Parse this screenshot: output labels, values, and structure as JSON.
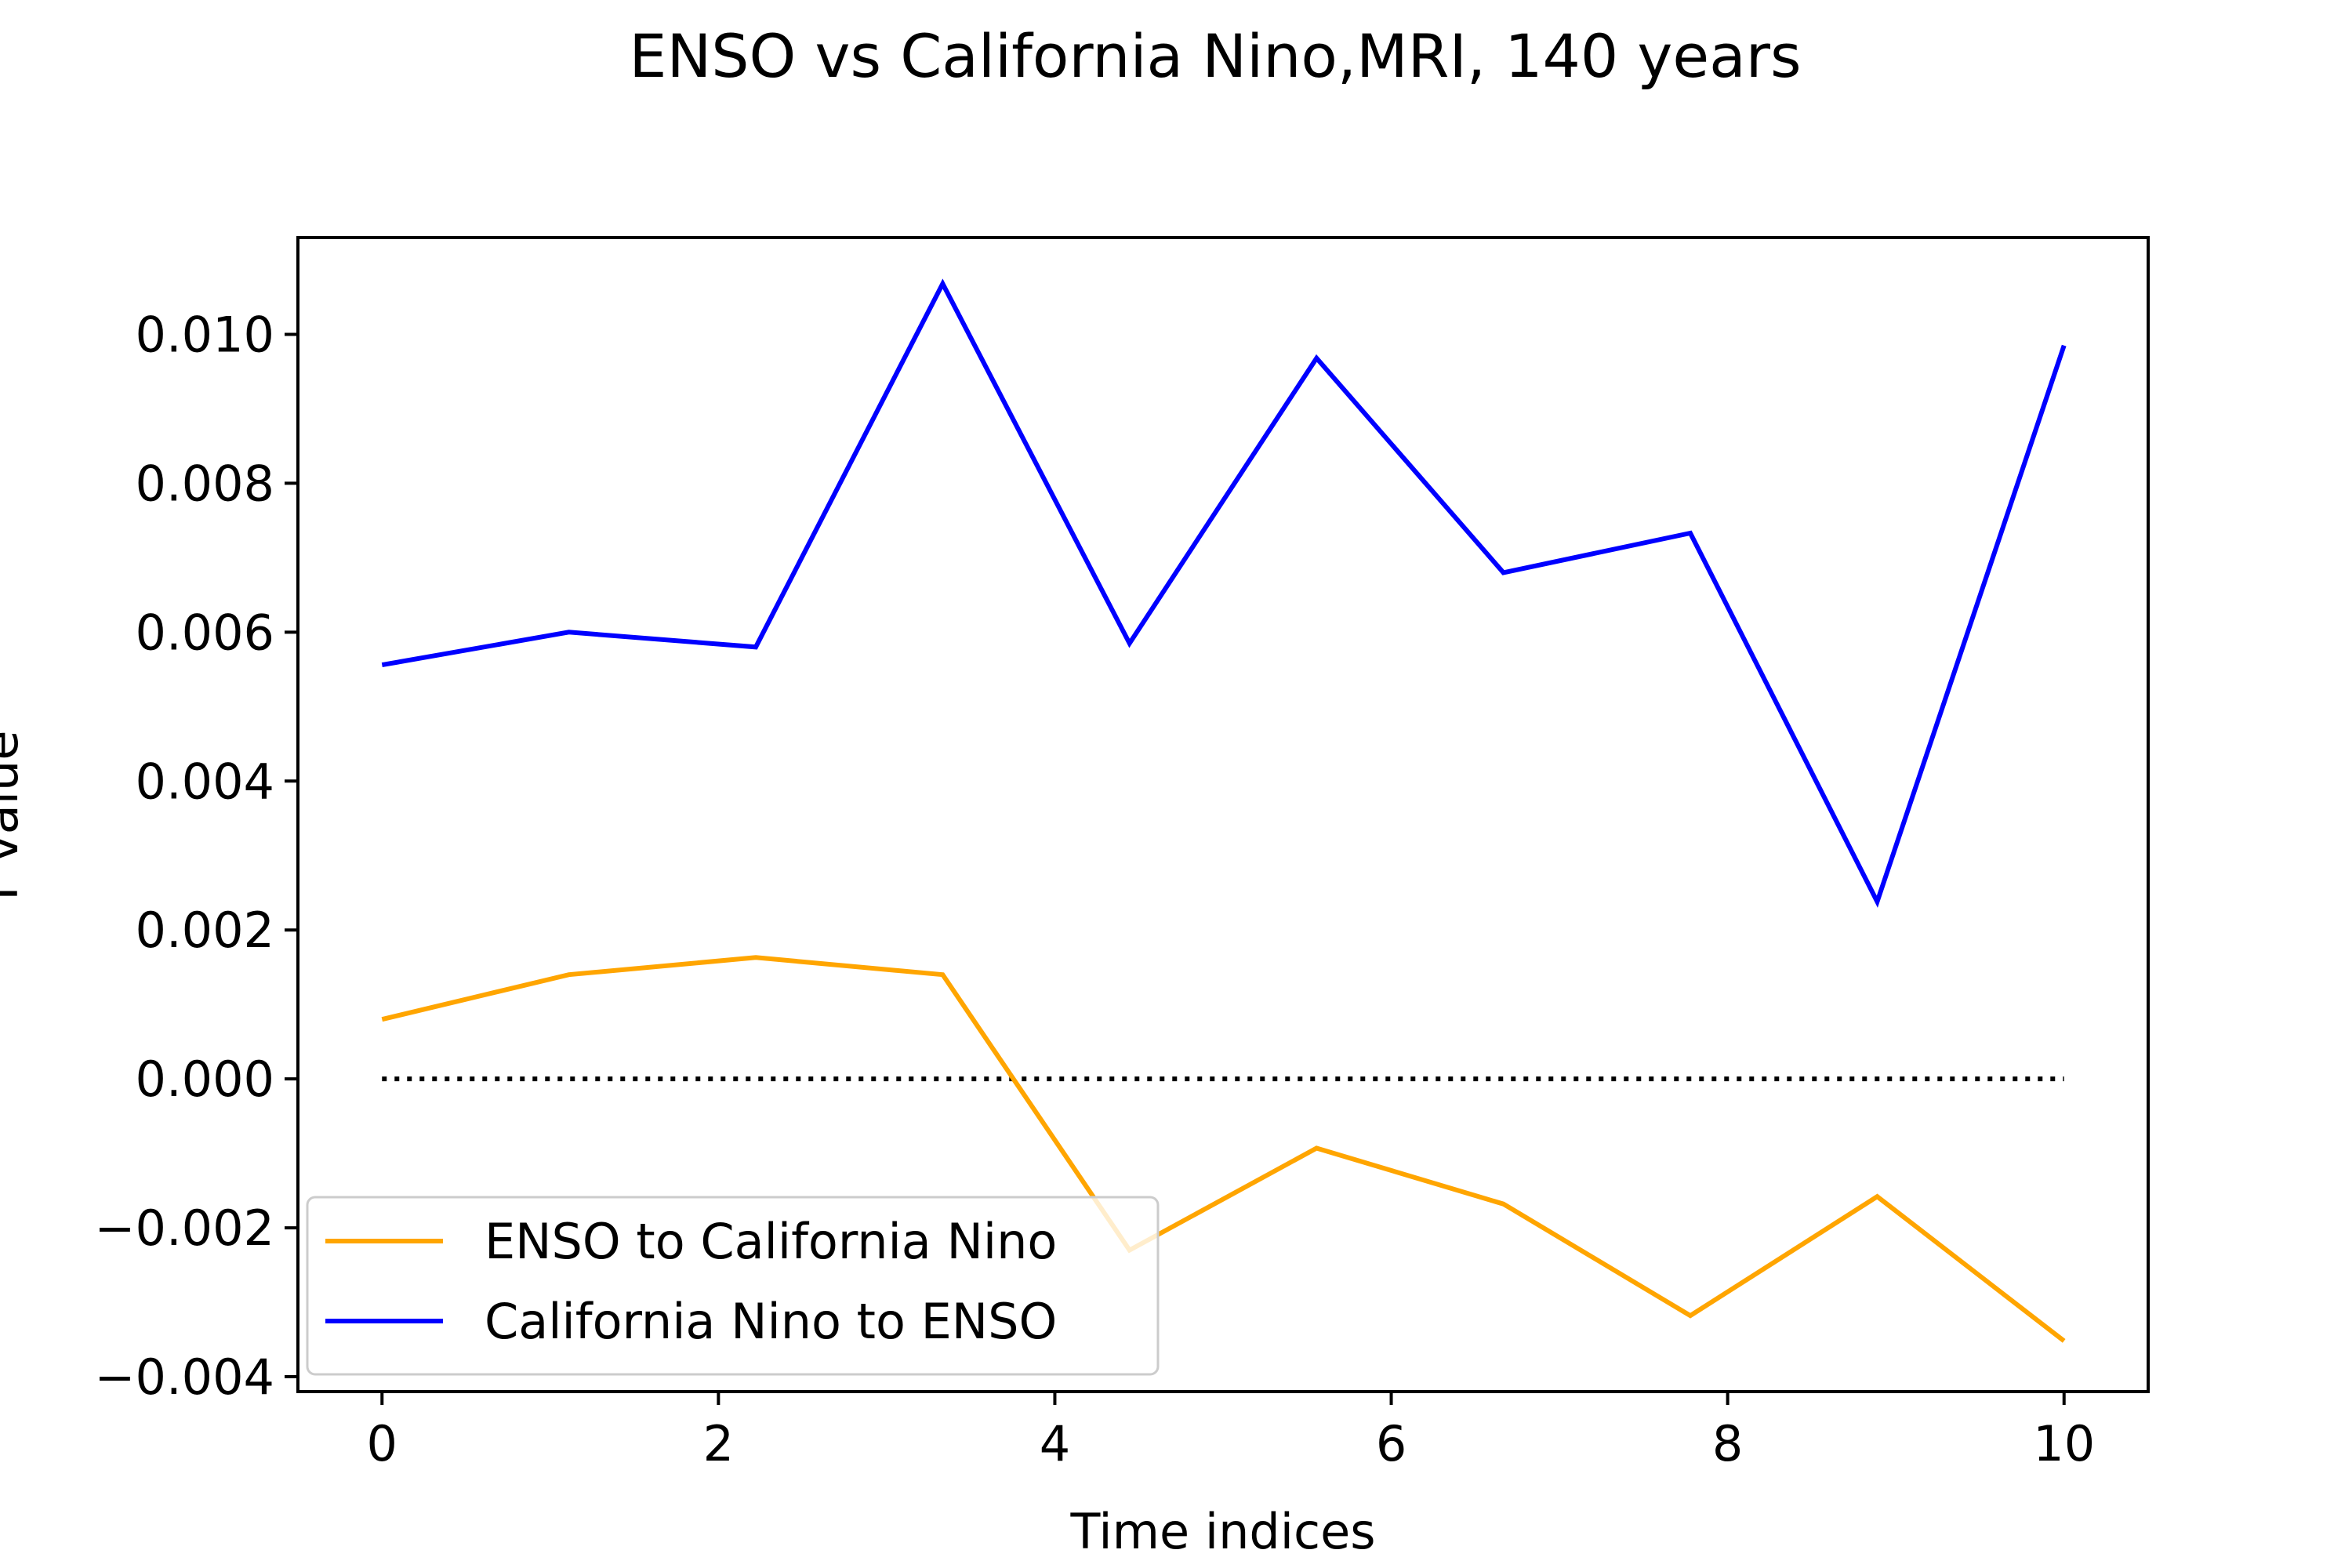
{
  "chart_data": {
    "type": "line",
    "title": "ENSO vs California Nino,MRI, 140 years",
    "xlabel": "Time indices",
    "ylabel": "T value",
    "xlim": [
      -0.5,
      10.5
    ],
    "ylim": [
      -0.0042,
      0.0113
    ],
    "xticks": [
      0,
      2,
      4,
      6,
      8,
      10
    ],
    "xtick_labels": [
      "0",
      "2",
      "4",
      "6",
      "8",
      "10"
    ],
    "yticks": [
      -0.004,
      -0.002,
      0.0,
      0.002,
      0.004,
      0.006,
      0.008,
      0.01
    ],
    "ytick_labels": [
      "−0.004",
      "−0.002",
      "0.000",
      "0.002",
      "0.004",
      "0.006",
      "0.008",
      "0.010"
    ],
    "x": [
      0,
      1.111,
      2.222,
      3.333,
      4.444,
      5.556,
      6.667,
      7.778,
      8.889,
      10
    ],
    "series": [
      {
        "name": "ENSO to California Nino",
        "color": "#ffa500",
        "values": [
          0.0008,
          0.0014,
          0.00163,
          0.0014,
          -0.0023,
          -0.00093,
          -0.00168,
          -0.00318,
          -0.00158,
          -0.00352
        ]
      },
      {
        "name": "California Nino to ENSO",
        "color": "#0000ff",
        "values": [
          0.00556,
          0.006,
          0.0058,
          0.01068,
          0.00585,
          0.00968,
          0.0068,
          0.00733,
          0.00238,
          0.00985
        ]
      }
    ],
    "reference_line": {
      "y": 0.0,
      "x_range": [
        0,
        10
      ],
      "style": "dotted",
      "color": "#000000"
    },
    "grid": false,
    "legend_position": "lower-left"
  }
}
